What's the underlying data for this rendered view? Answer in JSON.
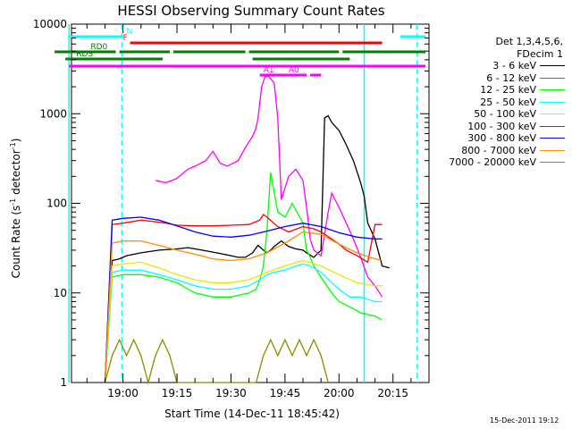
{
  "chart_data": {
    "type": "line",
    "title": "HESSI Observing Summary Count Rates",
    "xlabel": "Start Time (14-Dec-11 18:45:42)",
    "ylabel": "Count Rate (s⁻¹ detector⁻¹)",
    "ylabel_parts": [
      "Count Rate (s",
      "-1",
      " detector",
      "-1",
      ")"
    ],
    "y_scale": "log",
    "ylim": [
      1,
      10000
    ],
    "xlim": [
      "18:45:42",
      "20:25:00"
    ],
    "x_tick_labels": [
      "19:00",
      "19:15",
      "19:30",
      "19:45",
      "20:00",
      "20:15"
    ],
    "x_tick_minutes": [
      900,
      915,
      930,
      945,
      960,
      975
    ],
    "y_tick_labels": [
      "1",
      "10",
      "100",
      "1000",
      "10000"
    ],
    "grid": false,
    "legend_placement": "right",
    "legend": {
      "header_line1": "Det 1,3,4,5,6,",
      "header_line2": "FDecim 1",
      "entries": [
        {
          "label": "3 - 6 keV",
          "color": "#000000"
        },
        {
          "label": "6 - 12 keV",
          "color": "#ff00ff"
        },
        {
          "label": "12 - 25 keV",
          "color": "#00ff00"
        },
        {
          "label": "25 - 50 keV",
          "color": "#00ffff"
        },
        {
          "label": "50 - 100 keV",
          "color": "#e6e600"
        },
        {
          "label": "100 - 300 keV",
          "color": "#ff0000"
        },
        {
          "label": "300 - 800 keV",
          "color": "#0000ff"
        },
        {
          "label": "800 - 7000 keV",
          "color": "#ff8c00"
        },
        {
          "label": "7000 - 20000 keV",
          "color": "#8b8b00"
        }
      ]
    },
    "flag_bars": [
      {
        "label": "N",
        "color": "#00ffff",
        "segments": [
          [
            885,
            900
          ],
          [
            977,
            984
          ]
        ]
      },
      {
        "label": "F",
        "color": "#ff0000",
        "segments": [
          [
            902,
            972
          ]
        ]
      },
      {
        "label": "RD0",
        "color": "#008000",
        "segments": [
          [
            881,
            898
          ],
          [
            899,
            913
          ],
          [
            914,
            934
          ],
          [
            935,
            960
          ],
          [
            961,
            984
          ]
        ]
      },
      {
        "label": "RDS",
        "color": "#008000",
        "segments": [
          [
            884,
            911
          ],
          [
            936,
            963
          ]
        ]
      },
      {
        "label": "",
        "color": "#ff00ff",
        "segments": [
          [
            885,
            984
          ]
        ]
      },
      {
        "label": "A1",
        "color": "#ff00ff",
        "segments": [
          [
            938,
            951
          ]
        ]
      },
      {
        "label": "A0",
        "color": "#ff00ff",
        "segments": [
          [
            950,
            951
          ],
          [
            952,
            955
          ]
        ]
      }
    ],
    "vertical_lines": [
      {
        "minute": 885,
        "style": "solid",
        "color": "#00ffff"
      },
      {
        "minute": 899.7,
        "style": "dashed",
        "color": "#00ffff"
      },
      {
        "minute": 967,
        "style": "solid",
        "color": "#00ffff"
      },
      {
        "minute": 981.7,
        "style": "dashed",
        "color": "#00ffff"
      }
    ],
    "series": [
      {
        "name": "3 - 6 keV",
        "color": "#000000",
        "x": [
          895,
          897,
          899,
          901,
          905,
          910,
          915,
          918,
          920,
          922,
          924,
          926,
          928,
          930,
          932,
          934,
          936,
          937.5,
          939,
          940,
          941,
          942,
          944,
          946,
          948,
          950,
          951,
          953,
          955,
          956,
          957,
          958,
          960,
          962,
          964,
          966,
          967,
          968,
          970,
          972,
          974
        ],
        "y": [
          1,
          23,
          24,
          26,
          28,
          30,
          31,
          32,
          31,
          30,
          29,
          28,
          27,
          26,
          25,
          25,
          28,
          34,
          30,
          28,
          30,
          33,
          38,
          33,
          31,
          30,
          28,
          25,
          30,
          900,
          950,
          800,
          650,
          450,
          300,
          170,
          120,
          60,
          40,
          20,
          19
        ]
      },
      {
        "name": "6 - 12 keV",
        "color": "#ff00ff",
        "x": [
          909,
          912,
          915,
          918,
          920,
          923,
          925,
          927,
          929,
          932,
          934,
          936,
          937,
          937.5,
          938.5,
          939.5,
          940.5,
          942,
          943,
          944,
          946,
          948,
          950,
          951,
          951.5,
          952,
          953,
          955,
          957,
          958,
          960,
          962,
          964,
          966,
          968,
          970,
          972
        ],
        "y": [
          180,
          170,
          190,
          240,
          260,
          300,
          380,
          280,
          260,
          300,
          420,
          560,
          700,
          900,
          2000,
          2600,
          2600,
          2200,
          900,
          110,
          200,
          240,
          180,
          90,
          60,
          40,
          30,
          26,
          80,
          130,
          90,
          60,
          40,
          25,
          15,
          12,
          9
        ]
      },
      {
        "name": "12 - 25 keV",
        "color": "#00ff00",
        "x": [
          895,
          897,
          900,
          905,
          910,
          915,
          920,
          925,
          930,
          935,
          937,
          938,
          939,
          940,
          941,
          943,
          945,
          947,
          950,
          951,
          952,
          953,
          955,
          958,
          960,
          963,
          966,
          970,
          972
        ],
        "y": [
          1,
          15,
          16,
          16,
          15,
          13,
          10,
          9,
          9,
          10,
          11,
          14,
          20,
          50,
          220,
          80,
          70,
          100,
          60,
          30,
          25,
          20,
          15,
          10,
          8,
          7,
          6,
          5.5,
          5
        ]
      },
      {
        "name": "25 - 50 keV",
        "color": "#00ffff",
        "x": [
          895,
          897,
          900,
          905,
          910,
          915,
          920,
          925,
          930,
          935,
          938,
          940,
          942,
          945,
          948,
          950,
          952,
          955,
          958,
          960,
          963,
          966,
          970,
          972
        ],
        "y": [
          1,
          17,
          18,
          18,
          16,
          14,
          12,
          11,
          11,
          12,
          14,
          16,
          17,
          18,
          20,
          21,
          20,
          17,
          13,
          11,
          9,
          9,
          8,
          8
        ]
      },
      {
        "name": "50 - 100 keV",
        "color": "#e6e600",
        "x": [
          895,
          897,
          900,
          905,
          910,
          915,
          920,
          925,
          930,
          935,
          940,
          945,
          950,
          955,
          960,
          965,
          970,
          972
        ],
        "y": [
          1,
          20,
          21,
          22,
          19,
          16,
          14,
          13,
          13,
          14,
          17,
          20,
          23,
          20,
          16,
          13,
          12,
          12
        ]
      },
      {
        "name": "100 - 300 keV",
        "color": "#ff0000",
        "x": [
          895,
          897,
          900,
          905,
          908,
          912,
          915,
          920,
          925,
          930,
          935,
          938,
          939,
          940,
          943,
          946,
          950,
          953,
          955,
          958,
          960,
          962,
          965,
          968,
          970,
          972
        ],
        "y": [
          1,
          58,
          60,
          65,
          63,
          60,
          57,
          56,
          56,
          57,
          58,
          65,
          75,
          70,
          55,
          48,
          55,
          52,
          48,
          40,
          35,
          30,
          26,
          22,
          58,
          58
        ]
      },
      {
        "name": "300 - 800 keV",
        "color": "#0000ff",
        "x": [
          895,
          897,
          900,
          905,
          910,
          915,
          920,
          925,
          930,
          935,
          940,
          945,
          950,
          955,
          960,
          965,
          970,
          972
        ],
        "y": [
          1,
          65,
          68,
          70,
          65,
          56,
          48,
          43,
          42,
          44,
          49,
          55,
          60,
          55,
          47,
          42,
          40,
          40
        ]
      },
      {
        "name": "800 - 7000 keV",
        "color": "#ff8c00",
        "x": [
          895,
          897,
          900,
          905,
          910,
          915,
          920,
          925,
          930,
          935,
          940,
          945,
          950,
          955,
          960,
          965,
          970,
          972
        ],
        "y": [
          1,
          36,
          38,
          38,
          34,
          30,
          27,
          24,
          23,
          24,
          28,
          36,
          48,
          45,
          35,
          28,
          24,
          23
        ]
      },
      {
        "name": "7000 - 20000 keV",
        "color": "#8b8b00",
        "x": [
          895,
          897,
          899,
          901,
          903,
          905,
          907,
          909,
          911,
          913,
          915,
          937,
          939,
          941,
          943,
          945,
          947,
          949,
          951,
          953,
          955,
          957
        ],
        "y": [
          1,
          2,
          3,
          2,
          3,
          2,
          1,
          2,
          3,
          2,
          1,
          1,
          2,
          3,
          2,
          3,
          2,
          3,
          2,
          3,
          2,
          1
        ]
      }
    ]
  },
  "timestamp": "15-Dec-2011 19:12"
}
